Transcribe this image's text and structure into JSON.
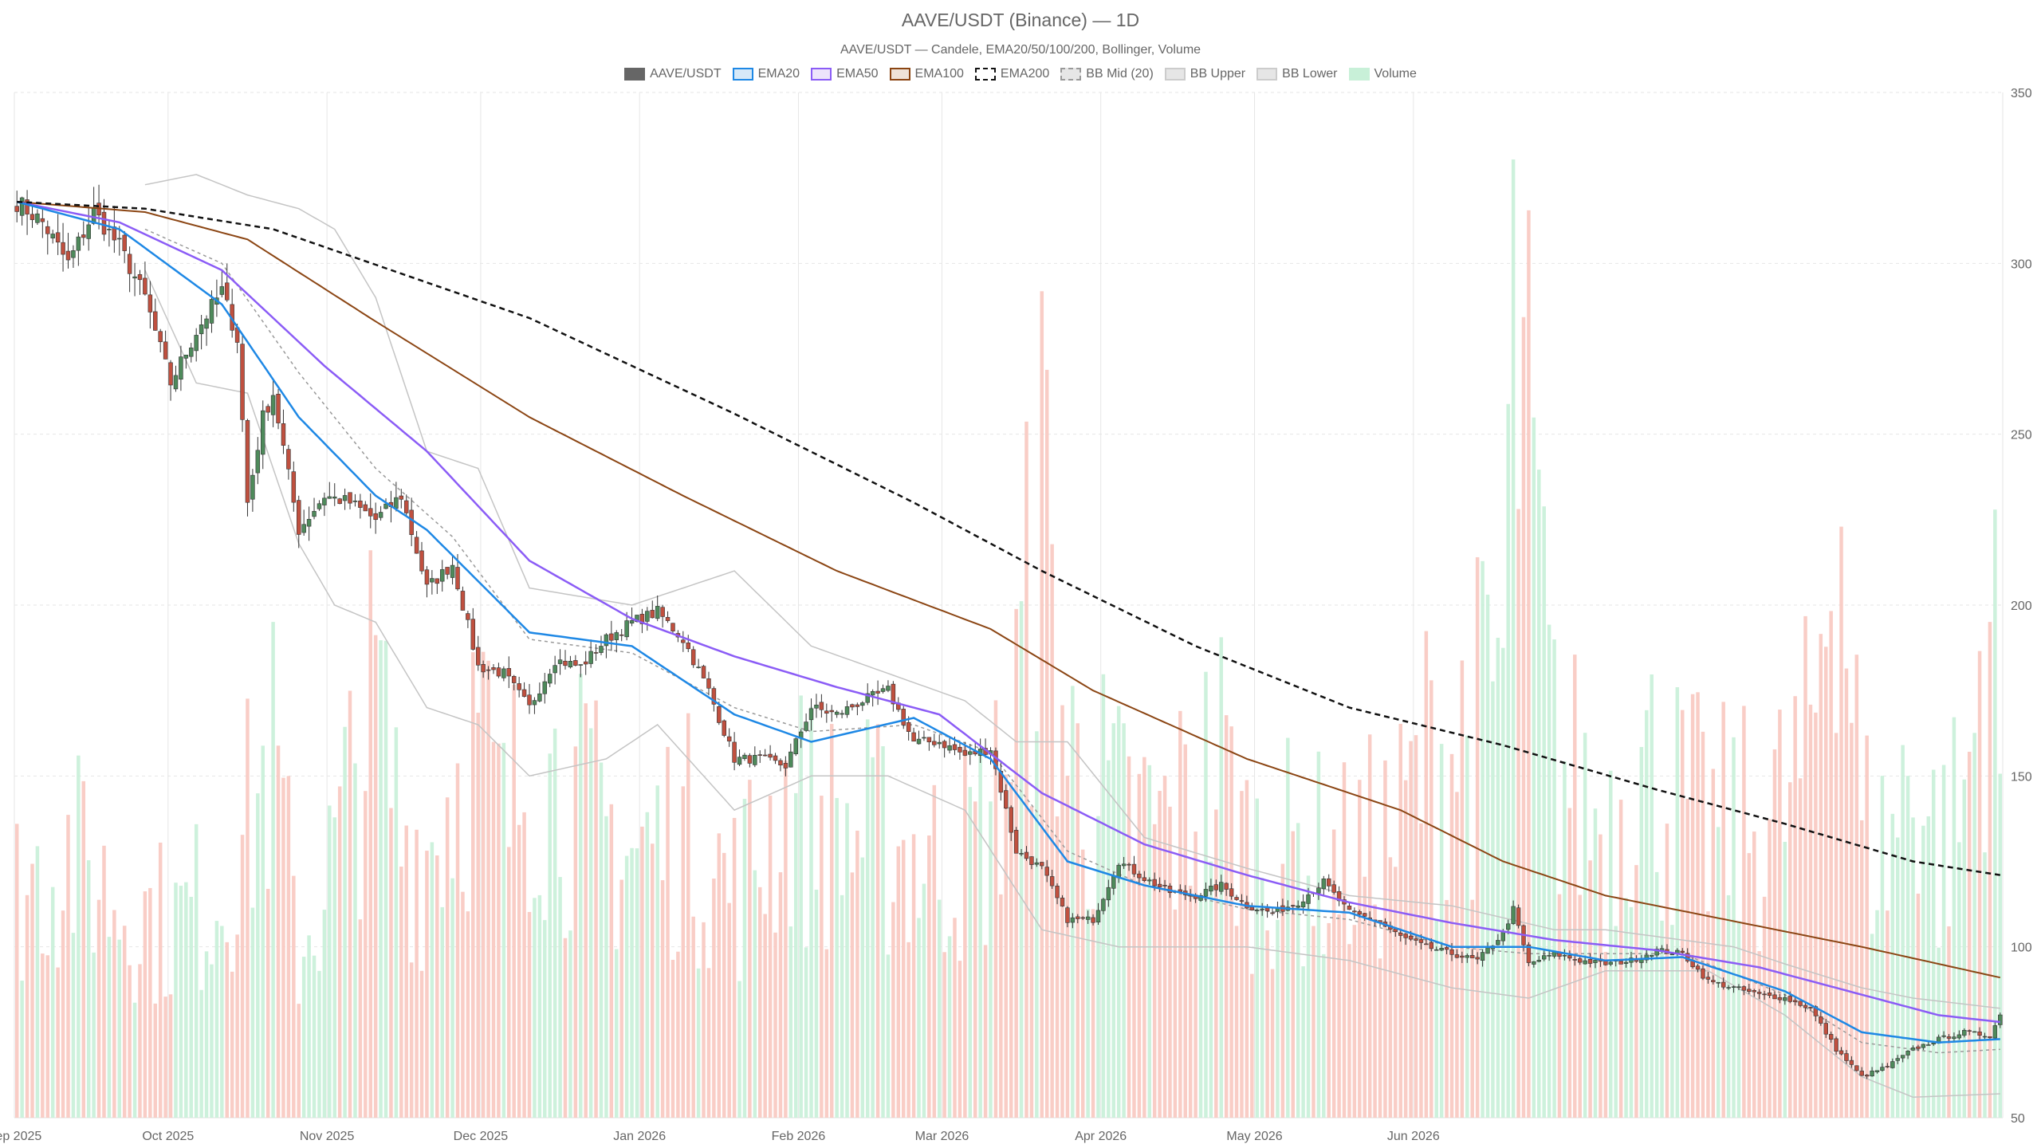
{
  "chart_data": {
    "type": "candlestick",
    "title": "AAVE/USDT (Binance) — 1D",
    "subtitle": "AAVE/USDT — Candele, EMA20/50/100/200, Bollinger, Volume",
    "legend": [
      {
        "label": "AAVE/USDT",
        "swatch": "solid",
        "fill": "#666666",
        "stroke": "#666666"
      },
      {
        "label": "EMA20",
        "swatch": "line",
        "fill": "#d6e9f8",
        "stroke": "#1e88e5"
      },
      {
        "label": "EMA50",
        "swatch": "line",
        "fill": "#ede4fb",
        "stroke": "#8b5cf6"
      },
      {
        "label": "EMA100",
        "swatch": "line",
        "fill": "#efe3d8",
        "stroke": "#8b4513"
      },
      {
        "label": "EMA200",
        "swatch": "dashed",
        "fill": "#ffffff",
        "stroke": "#111111"
      },
      {
        "label": "BB Mid (20)",
        "swatch": "dashed",
        "fill": "#e6e6e6",
        "stroke": "#999999"
      },
      {
        "label": "BB Upper",
        "swatch": "solid",
        "fill": "#e6e6e6",
        "stroke": "#cccccc"
      },
      {
        "label": "BB Lower",
        "swatch": "solid",
        "fill": "#e6e6e6",
        "stroke": "#cccccc"
      },
      {
        "label": "Volume",
        "swatch": "solid",
        "fill": "#c8f0d8",
        "stroke": "#c8f0d8"
      }
    ],
    "x_ticks": [
      "Sep 2025",
      "Oct 2025",
      "Nov 2025",
      "Dec 2025",
      "Jan 2026",
      "Feb 2026",
      "Mar 2026",
      "Apr 2026",
      "May 2026",
      "Jun 2026"
    ],
    "y_ticks": [
      "50",
      "100",
      "150",
      "200",
      "250",
      "300",
      "350"
    ],
    "ylim": [
      50,
      350
    ],
    "grid": true,
    "colors": {
      "up": "#4e8a5b",
      "down": "#c0503f",
      "vol_up": "#c8f0d8",
      "vol_down": "#f8c8c0",
      "ema20": "#1e88e5",
      "ema50": "#8b5cf6",
      "ema100": "#8b4513",
      "ema200": "#111111",
      "bb": "#c4c4c4",
      "bb_mid": "#999999"
    },
    "series": {
      "close_anchors": [
        [
          0,
          318
        ],
        [
          5,
          312
        ],
        [
          10,
          300
        ],
        [
          15,
          315
        ],
        [
          20,
          305
        ],
        [
          25,
          290
        ],
        [
          30,
          265
        ],
        [
          35,
          280
        ],
        [
          40,
          292
        ],
        [
          43,
          278
        ],
        [
          45,
          230
        ],
        [
          48,
          255
        ],
        [
          50,
          262
        ],
        [
          55,
          222
        ],
        [
          60,
          232
        ],
        [
          65,
          230
        ],
        [
          70,
          225
        ],
        [
          75,
          232
        ],
        [
          80,
          205
        ],
        [
          85,
          212
        ],
        [
          90,
          182
        ],
        [
          95,
          180
        ],
        [
          100,
          170
        ],
        [
          105,
          184
        ],
        [
          110,
          182
        ],
        [
          115,
          190
        ],
        [
          120,
          195
        ],
        [
          125,
          198
        ],
        [
          130,
          190
        ],
        [
          135,
          175
        ],
        [
          140,
          155
        ],
        [
          145,
          155
        ],
        [
          150,
          153
        ],
        [
          155,
          170
        ],
        [
          160,
          168
        ],
        [
          165,
          172
        ],
        [
          170,
          175
        ],
        [
          175,
          160
        ],
        [
          180,
          160
        ],
        [
          185,
          156
        ],
        [
          190,
          158
        ],
        [
          195,
          128
        ],
        [
          200,
          123
        ],
        [
          205,
          108
        ],
        [
          210,
          108
        ],
        [
          215,
          125
        ],
        [
          220,
          120
        ],
        [
          225,
          116
        ],
        [
          230,
          115
        ],
        [
          235,
          118
        ],
        [
          240,
          112
        ],
        [
          245,
          110
        ],
        [
          250,
          113
        ],
        [
          255,
          119
        ],
        [
          260,
          110
        ],
        [
          265,
          108
        ],
        [
          270,
          103
        ],
        [
          275,
          100
        ],
        [
          280,
          98
        ],
        [
          285,
          96
        ],
        [
          290,
          104
        ],
        [
          292,
          111
        ],
        [
          295,
          95
        ],
        [
          300,
          98
        ],
        [
          305,
          96
        ],
        [
          310,
          95
        ],
        [
          315,
          96
        ],
        [
          320,
          99
        ],
        [
          325,
          98
        ],
        [
          330,
          90
        ],
        [
          335,
          88
        ],
        [
          340,
          86
        ],
        [
          345,
          85
        ],
        [
          350,
          82
        ],
        [
          355,
          70
        ],
        [
          360,
          62
        ],
        [
          365,
          65
        ],
        [
          370,
          70
        ],
        [
          375,
          73
        ],
        [
          380,
          75
        ],
        [
          385,
          74
        ],
        [
          387,
          80
        ]
      ],
      "candle_count": 388,
      "ema20_anchors": [
        [
          0,
          318
        ],
        [
          20,
          310
        ],
        [
          40,
          288
        ],
        [
          55,
          255
        ],
        [
          70,
          232
        ],
        [
          80,
          222
        ],
        [
          100,
          192
        ],
        [
          120,
          188
        ],
        [
          140,
          168
        ],
        [
          155,
          160
        ],
        [
          175,
          167
        ],
        [
          190,
          155
        ],
        [
          205,
          125
        ],
        [
          220,
          118
        ],
        [
          240,
          112
        ],
        [
          260,
          110
        ],
        [
          280,
          100
        ],
        [
          295,
          100
        ],
        [
          310,
          96
        ],
        [
          325,
          97
        ],
        [
          345,
          87
        ],
        [
          360,
          75
        ],
        [
          375,
          72
        ],
        [
          387,
          73
        ]
      ],
      "ema50_anchors": [
        [
          0,
          318
        ],
        [
          20,
          312
        ],
        [
          40,
          298
        ],
        [
          60,
          270
        ],
        [
          80,
          245
        ],
        [
          100,
          213
        ],
        [
          120,
          196
        ],
        [
          140,
          185
        ],
        [
          160,
          176
        ],
        [
          180,
          168
        ],
        [
          200,
          145
        ],
        [
          220,
          130
        ],
        [
          240,
          121
        ],
        [
          260,
          113
        ],
        [
          280,
          107
        ],
        [
          300,
          102
        ],
        [
          320,
          99
        ],
        [
          340,
          94
        ],
        [
          360,
          86
        ],
        [
          375,
          80
        ],
        [
          387,
          78
        ]
      ],
      "ema100_anchors": [
        [
          0,
          318
        ],
        [
          25,
          315
        ],
        [
          45,
          307
        ],
        [
          70,
          283
        ],
        [
          100,
          255
        ],
        [
          130,
          232
        ],
        [
          160,
          210
        ],
        [
          190,
          193
        ],
        [
          210,
          175
        ],
        [
          240,
          155
        ],
        [
          270,
          140
        ],
        [
          290,
          125
        ],
        [
          310,
          115
        ],
        [
          340,
          106
        ],
        [
          360,
          100
        ],
        [
          387,
          91
        ]
      ],
      "ema200_anchors": [
        [
          0,
          318
        ],
        [
          25,
          316
        ],
        [
          50,
          310
        ],
        [
          100,
          284
        ],
        [
          140,
          256
        ],
        [
          175,
          230
        ],
        [
          200,
          210
        ],
        [
          230,
          188
        ],
        [
          260,
          170
        ],
        [
          290,
          159
        ],
        [
          320,
          146
        ],
        [
          345,
          136
        ],
        [
          370,
          125
        ],
        [
          387,
          121
        ]
      ],
      "bb_upper_anchors": [
        [
          25,
          323
        ],
        [
          35,
          326
        ],
        [
          45,
          320
        ],
        [
          55,
          316
        ],
        [
          62,
          310
        ],
        [
          70,
          290
        ],
        [
          80,
          245
        ],
        [
          90,
          240
        ],
        [
          100,
          205
        ],
        [
          120,
          200
        ],
        [
          140,
          210
        ],
        [
          155,
          188
        ],
        [
          170,
          180
        ],
        [
          185,
          172
        ],
        [
          195,
          160
        ],
        [
          205,
          160
        ],
        [
          220,
          132
        ],
        [
          240,
          123
        ],
        [
          260,
          115
        ],
        [
          280,
          112
        ],
        [
          300,
          105
        ],
        [
          310,
          105
        ],
        [
          320,
          103
        ],
        [
          335,
          100
        ],
        [
          345,
          95
        ],
        [
          360,
          88
        ],
        [
          370,
          85
        ],
        [
          387,
          82
        ]
      ],
      "bb_lower_anchors": [
        [
          25,
          298
        ],
        [
          35,
          265
        ],
        [
          45,
          262
        ],
        [
          55,
          218
        ],
        [
          62,
          200
        ],
        [
          70,
          195
        ],
        [
          80,
          170
        ],
        [
          90,
          165
        ],
        [
          100,
          150
        ],
        [
          115,
          155
        ],
        [
          125,
          165
        ],
        [
          140,
          140
        ],
        [
          155,
          150
        ],
        [
          170,
          150
        ],
        [
          185,
          140
        ],
        [
          200,
          105
        ],
        [
          215,
          100
        ],
        [
          240,
          100
        ],
        [
          260,
          96
        ],
        [
          280,
          88
        ],
        [
          295,
          85
        ],
        [
          310,
          93
        ],
        [
          330,
          93
        ],
        [
          345,
          80
        ],
        [
          360,
          62
        ],
        [
          370,
          56
        ],
        [
          387,
          57
        ]
      ],
      "bb_mid_anchors": [
        [
          25,
          310
        ],
        [
          40,
          300
        ],
        [
          55,
          268
        ],
        [
          70,
          240
        ],
        [
          85,
          220
        ],
        [
          100,
          190
        ],
        [
          120,
          186
        ],
        [
          140,
          170
        ],
        [
          155,
          163
        ],
        [
          175,
          165
        ],
        [
          190,
          157
        ],
        [
          205,
          128
        ],
        [
          220,
          118
        ],
        [
          240,
          111
        ],
        [
          260,
          108
        ],
        [
          280,
          100
        ],
        [
          295,
          98
        ],
        [
          310,
          98
        ],
        [
          325,
          98
        ],
        [
          345,
          86
        ],
        [
          360,
          72
        ],
        [
          375,
          69
        ],
        [
          387,
          70
        ]
      ],
      "volume_scale_note": "volume",
      "volume_anchors": [
        [
          0,
          95
        ],
        [
          10,
          110
        ],
        [
          20,
          90
        ],
        [
          30,
          80
        ],
        [
          40,
          95
        ],
        [
          50,
          150
        ],
        [
          55,
          70
        ],
        [
          60,
          95
        ],
        [
          70,
          175
        ],
        [
          75,
          120
        ],
        [
          80,
          110
        ],
        [
          85,
          140
        ],
        [
          90,
          160
        ],
        [
          95,
          120
        ],
        [
          100,
          150
        ],
        [
          110,
          130
        ],
        [
          120,
          110
        ],
        [
          130,
          120
        ],
        [
          140,
          95
        ],
        [
          150,
          130
        ],
        [
          160,
          120
        ],
        [
          170,
          115
        ],
        [
          180,
          105
        ],
        [
          190,
          120
        ],
        [
          195,
          170
        ],
        [
          200,
          260
        ],
        [
          205,
          150
        ],
        [
          215,
          125
        ],
        [
          225,
          120
        ],
        [
          235,
          150
        ],
        [
          240,
          110
        ],
        [
          250,
          110
        ],
        [
          260,
          105
        ],
        [
          270,
          120
        ],
        [
          275,
          150
        ],
        [
          280,
          155
        ],
        [
          285,
          165
        ],
        [
          290,
          190
        ],
        [
          292,
          320
        ],
        [
          295,
          270
        ],
        [
          300,
          150
        ],
        [
          310,
          120
        ],
        [
          315,
          150
        ],
        [
          320,
          140
        ],
        [
          325,
          130
        ],
        [
          330,
          120
        ],
        [
          340,
          120
        ],
        [
          345,
          130
        ],
        [
          350,
          150
        ],
        [
          355,
          280
        ],
        [
          360,
          120
        ],
        [
          365,
          110
        ],
        [
          370,
          150
        ],
        [
          375,
          110
        ],
        [
          380,
          130
        ],
        [
          385,
          220
        ],
        [
          387,
          150
        ]
      ],
      "volume_max_value": 330
    }
  }
}
